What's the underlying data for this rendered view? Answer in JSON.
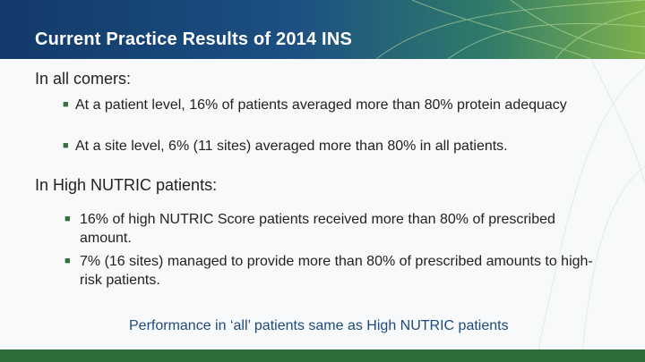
{
  "slide": {
    "title": "Current Practice Results of 2014 INS",
    "section1": {
      "heading": "In all comers:",
      "bullets": [
        "At a patient level, 16% of patients averaged more than 80% protein adequacy",
        "At a site level, 6% (11 sites) averaged more than 80% in all patients."
      ]
    },
    "section2": {
      "heading": "In High NUTRIC patients:",
      "bullets": [
        "16% of high NUTRIC Score patients received more than 80% of prescribed amount.",
        "7% (16 sites) managed to provide more than 80% of prescribed amounts to high-risk patients."
      ]
    },
    "conclusion": "Performance in ‘all’ patients same as High NUTRIC patients"
  },
  "colors": {
    "header_start": "#123a6a",
    "header_end": "#7fb24a",
    "footer_bar": "#2f6d3a",
    "conclusion_text": "#1d4b7a"
  },
  "icons": {
    "bullet": "square-bullet-icon"
  }
}
